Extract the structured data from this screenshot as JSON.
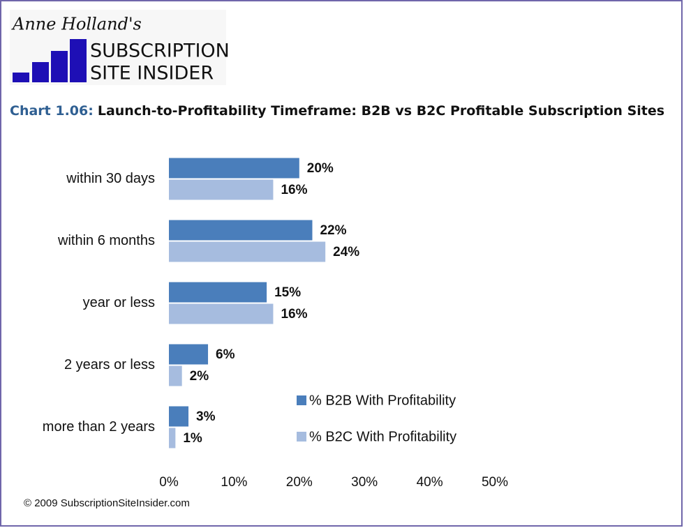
{
  "logo": {
    "byline": "Anne Holland's",
    "line1": "SUBSCRIPTION",
    "line2": "SITE INSIDER"
  },
  "footer": "© 2009 SubscriptionSiteInsider.com",
  "chart_data": {
    "type": "hbar",
    "title_prefix": "Chart 1.06:",
    "title": "Launch-to-Profitability Timeframe: B2B vs B2C Profitable Subscription Sites",
    "categories": [
      "within 30 days",
      "within 6 months",
      "year or less",
      "2 years or less",
      "more than 2 years"
    ],
    "series": [
      {
        "name": "% B2B With Profitability",
        "color": "#4a7ebb",
        "values": [
          20,
          22,
          15,
          6,
          3
        ],
        "value_labels": [
          "20%",
          "22%",
          "15%",
          "6%",
          "3%"
        ]
      },
      {
        "name": "% B2C With Profitability",
        "color": "#a6bcdf",
        "values": [
          16,
          24,
          16,
          2,
          1
        ],
        "value_labels": [
          "16%",
          "24%",
          "16%",
          "2%",
          "1%"
        ]
      }
    ],
    "xlim": [
      0,
      50
    ],
    "xticks": [
      {
        "value": 0,
        "label": "0%"
      },
      {
        "value": 10,
        "label": "10%"
      },
      {
        "value": 20,
        "label": "20%"
      },
      {
        "value": 30,
        "label": "30%"
      },
      {
        "value": 40,
        "label": "40%"
      },
      {
        "value": 50,
        "label": "50%"
      }
    ],
    "grid": false,
    "legend": "lower right"
  }
}
